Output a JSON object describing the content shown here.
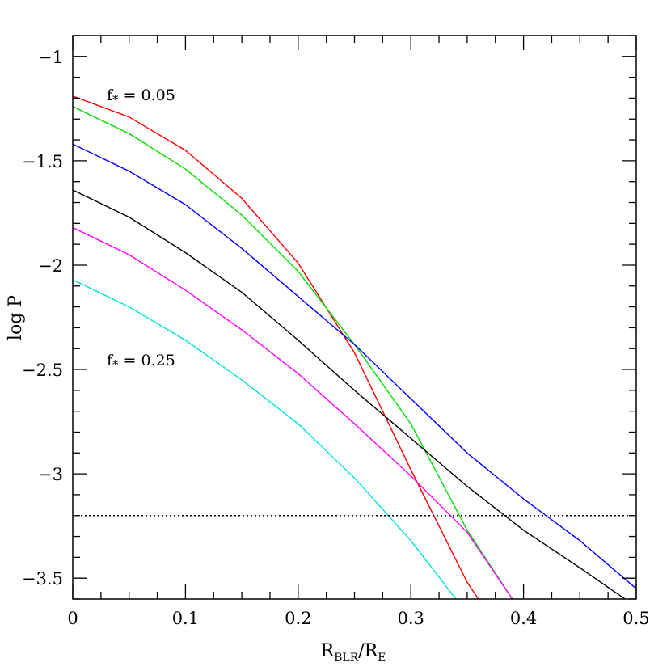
{
  "chart_data": {
    "type": "line",
    "title": "",
    "xlabel": {
      "main1": "R",
      "sub1": "BLR",
      "slash": "/R",
      "sub2": "E"
    },
    "ylabel": "log P",
    "xlim": [
      0,
      0.5
    ],
    "ylim": [
      -3.6,
      -0.9
    ],
    "xticks": [
      0,
      0.1,
      0.2,
      0.3,
      0.4,
      0.5
    ],
    "xtick_labels": [
      "0",
      "0.1",
      "0.2",
      "0.3",
      "0.4",
      "0.5"
    ],
    "yticks": [
      -1,
      -1.5,
      -2,
      -2.5,
      -3,
      -3.5
    ],
    "ytick_labels": [
      "−1",
      "−1.5",
      "−2",
      "−2.5",
      "−3",
      "−3.5"
    ],
    "grid": false,
    "annotations": {
      "top": {
        "f": "f",
        "star": "*",
        "rest": "= 0.05"
      },
      "bottom": {
        "f": "f",
        "star": "*",
        "rest": "= 0.25"
      }
    },
    "hline": {
      "y": -3.2,
      "style": "dotted"
    },
    "series": [
      {
        "color": "#ff0000",
        "x": [
          0,
          0.05,
          0.1,
          0.15,
          0.2,
          0.25,
          0.3,
          0.35,
          0.36
        ],
        "y": [
          -1.19,
          -1.29,
          -1.45,
          -1.68,
          -1.99,
          -2.42,
          -2.98,
          -3.52,
          -3.6
        ]
      },
      {
        "color": "#00e000",
        "x": [
          0,
          0.05,
          0.1,
          0.15,
          0.2,
          0.25,
          0.3,
          0.35,
          0.39
        ],
        "y": [
          -1.24,
          -1.37,
          -1.54,
          -1.76,
          -2.03,
          -2.38,
          -2.76,
          -3.27,
          -3.6
        ]
      },
      {
        "color": "#0000ff",
        "x": [
          0,
          0.05,
          0.1,
          0.15,
          0.2,
          0.25,
          0.3,
          0.35,
          0.4,
          0.45,
          0.5
        ],
        "y": [
          -1.42,
          -1.55,
          -1.71,
          -1.92,
          -2.15,
          -2.38,
          -2.64,
          -2.9,
          -3.12,
          -3.32,
          -3.55
        ]
      },
      {
        "color": "#000000",
        "x": [
          0,
          0.05,
          0.1,
          0.15,
          0.2,
          0.25,
          0.3,
          0.35,
          0.4,
          0.45,
          0.49
        ],
        "y": [
          -1.64,
          -1.77,
          -1.94,
          -2.13,
          -2.36,
          -2.6,
          -2.83,
          -3.06,
          -3.27,
          -3.45,
          -3.6
        ]
      },
      {
        "color": "#ff00ff",
        "x": [
          0,
          0.05,
          0.1,
          0.15,
          0.2,
          0.25,
          0.3,
          0.35,
          0.39
        ],
        "y": [
          -1.82,
          -1.95,
          -2.12,
          -2.31,
          -2.52,
          -2.76,
          -3.01,
          -3.28,
          -3.6
        ]
      },
      {
        "color": "#00e0e0",
        "x": [
          0,
          0.05,
          0.1,
          0.15,
          0.2,
          0.25,
          0.3,
          0.34
        ],
        "y": [
          -2.07,
          -2.2,
          -2.36,
          -2.55,
          -2.76,
          -3.02,
          -3.32,
          -3.6
        ]
      }
    ]
  }
}
